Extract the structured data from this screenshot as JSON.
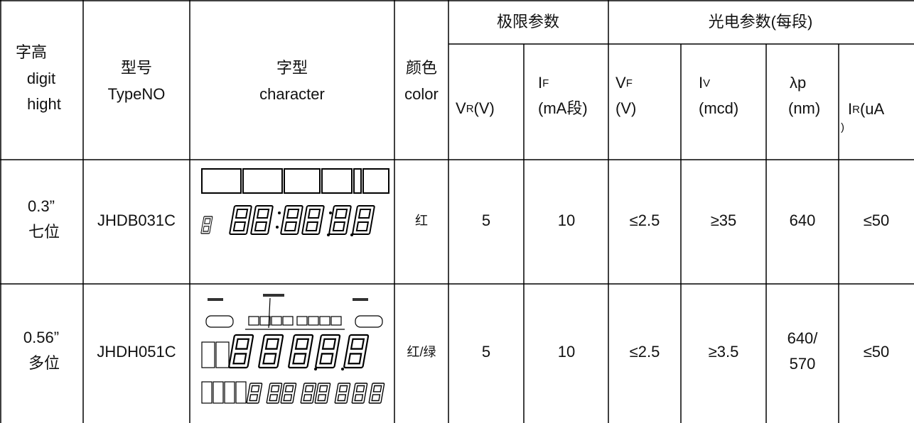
{
  "header": {
    "digit_height": [
      "字高",
      "digit",
      "hight"
    ],
    "type_no": [
      "型号",
      "TypeNO"
    ],
    "character": [
      "字型",
      "character"
    ],
    "color": [
      "颜色",
      "color"
    ],
    "limit_params": "极限参数",
    "optical_params": "光电参数(每段)",
    "vr": [
      "V",
      "R",
      "(V)"
    ],
    "if": [
      "I",
      "F",
      "(mA段)"
    ],
    "vf": [
      "V",
      "F",
      "(V)"
    ],
    "iv": [
      "I",
      "V",
      "(mcd)"
    ],
    "lp": [
      "λp",
      "(nm)"
    ],
    "ir": [
      "I",
      "R",
      "(uA",
      ")"
    ]
  },
  "rows": [
    {
      "height": [
        "0.3”",
        "七位"
      ],
      "type_no": "JHDB031C",
      "color": "红",
      "vr": "5",
      "if": "10",
      "vf": "≤2.5",
      "iv": "≥35",
      "lp": [
        "640"
      ],
      "ir": "≤50"
    },
    {
      "height": [
        "0.56”",
        "多位"
      ],
      "type_no": "JHDH051C",
      "color": "红/绿",
      "vr": "5",
      "if": "10",
      "vf": "≤2.5",
      "iv": "≥3.5",
      "lp": [
        "640/",
        "570"
      ],
      "ir": "≤50"
    }
  ]
}
